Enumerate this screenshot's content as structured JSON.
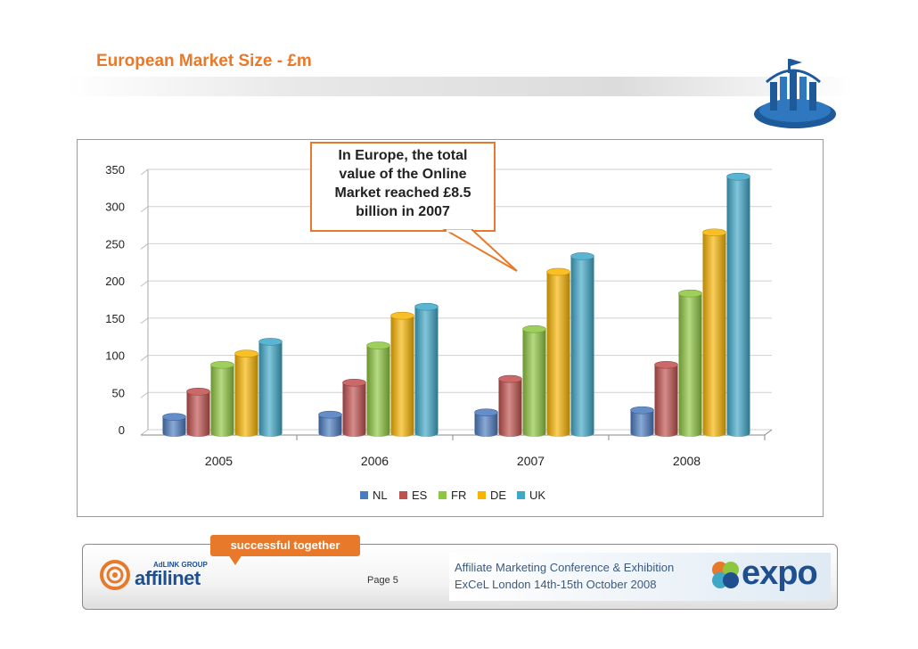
{
  "slide": {
    "title": "European Market Size - £m",
    "page": "Page 5"
  },
  "callout": {
    "line1": "In Europe, the total",
    "line2": "value of the Online",
    "line3": "Market reached £8.5",
    "line4": "billion in 2007"
  },
  "footer": {
    "tagline": "successful together",
    "group": "AdLINK GROUP",
    "brand": "affilinet",
    "conference_line1": "Affiliate Marketing Conference & Exhibition",
    "conference_line2": "ExCeL London 14th-15th October 2008",
    "expo_brand": "expo"
  },
  "chart_data": {
    "type": "bar",
    "title": "",
    "xlabel": "",
    "ylabel": "",
    "categories": [
      "2005",
      "2006",
      "2007",
      "2008"
    ],
    "ylim": [
      0,
      350
    ],
    "yticks": [
      0,
      50,
      100,
      150,
      200,
      250,
      300,
      350
    ],
    "grid": true,
    "legend_position": "bottom",
    "series": [
      {
        "name": "NL",
        "color": "#4a7ac0",
        "values": [
          22,
          25,
          28,
          31
        ]
      },
      {
        "name": "ES",
        "color": "#c0504d",
        "values": [
          56,
          68,
          73,
          92
        ]
      },
      {
        "name": "FR",
        "color": "#8dc63f",
        "values": [
          92,
          118,
          140,
          188
        ]
      },
      {
        "name": "DE",
        "color": "#f8b400",
        "values": [
          107,
          158,
          217,
          270
        ]
      },
      {
        "name": "UK",
        "color": "#3ea8c8",
        "values": [
          123,
          170,
          238,
          345
        ]
      }
    ]
  }
}
